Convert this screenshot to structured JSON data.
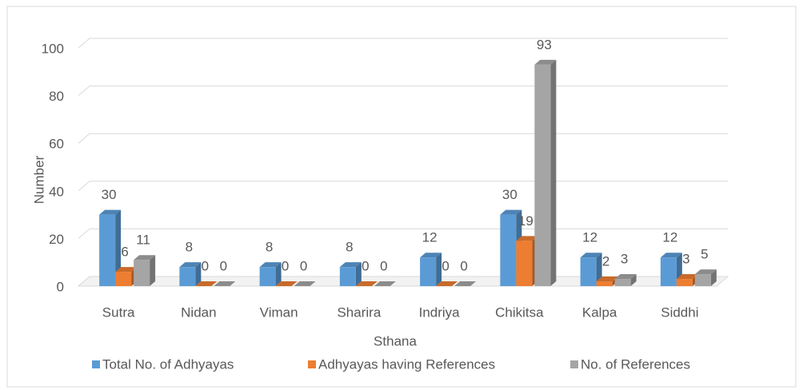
{
  "chart_data": {
    "type": "bar3d",
    "categories": [
      "Sutra",
      "Nidan",
      "Viman",
      "Sharira",
      "Indriya",
      "Chikitsa",
      "Kalpa",
      "Siddhi"
    ],
    "series": [
      {
        "name": "Total No. of Adhyayas",
        "color": "#5b9bd5",
        "values": [
          30,
          8,
          8,
          8,
          12,
          30,
          12,
          12
        ]
      },
      {
        "name": "Adhyayas having References",
        "color": "#ed7d31",
        "values": [
          6,
          0,
          0,
          0,
          0,
          19,
          2,
          3
        ]
      },
      {
        "name": "No. of References",
        "color": "#a5a5a5",
        "values": [
          11,
          0,
          0,
          0,
          0,
          93,
          3,
          5
        ]
      }
    ],
    "xlabel": "Sthana",
    "ylabel": "Number",
    "ylim": [
      0,
      100
    ],
    "yticks": [
      0,
      20,
      40,
      60,
      80,
      100
    ],
    "grid": true,
    "legend": "bottom"
  }
}
